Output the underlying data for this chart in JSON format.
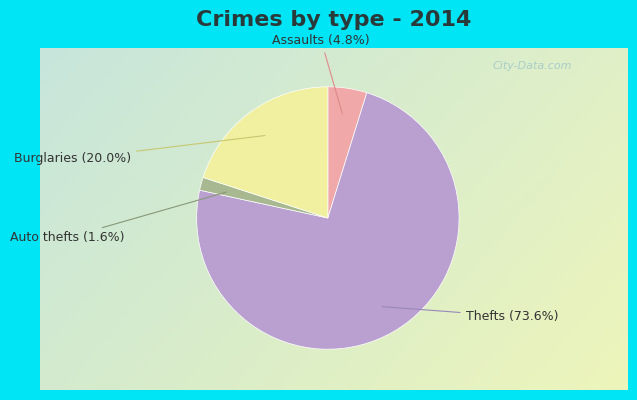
{
  "title": "Crimes by type - 2014",
  "slices": [
    {
      "label": "Thefts (73.6%)",
      "value": 73.6,
      "color": "#b9a0d0"
    },
    {
      "label": "Assaults (4.8%)",
      "value": 4.8,
      "color": "#f0a8a8"
    },
    {
      "label": "Burglaries (20.0%)",
      "value": 20.0,
      "color": "#f0f0a0"
    },
    {
      "label": "Auto thefts (1.6%)",
      "value": 1.6,
      "color": "#a8b890"
    }
  ],
  "background_cyan": "#00e5f5",
  "background_inner_tl": "#c8e8e0",
  "background_inner_br": "#e8f0e8",
  "title_fontsize": 16,
  "label_fontsize": 9,
  "startangle": 90,
  "watermark": "City-Data.com",
  "title_color": "#2a3a3a"
}
